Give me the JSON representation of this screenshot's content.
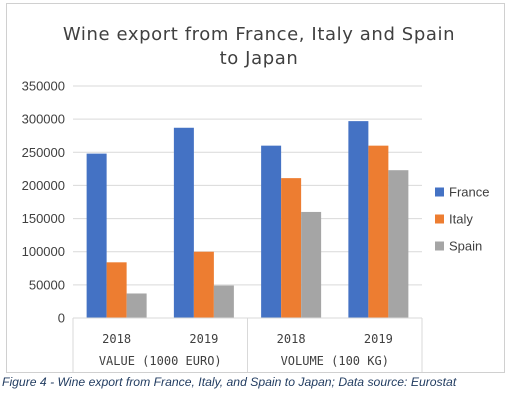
{
  "chart_data": {
    "type": "bar",
    "title_lines": [
      "Wine export from France, Italy and Spain",
      "to Japan"
    ],
    "groups": [
      {
        "label": "VALUE (1000 EURO)",
        "categories": [
          "2018",
          "2019"
        ]
      },
      {
        "label": "VOLUME (100 KG)",
        "categories": [
          "2018",
          "2019"
        ]
      }
    ],
    "categories": [
      "2018",
      "2019",
      "2018",
      "2019"
    ],
    "series": [
      {
        "name": "France",
        "color": "#4472C4",
        "values": [
          248000,
          287000,
          260000,
          297000
        ]
      },
      {
        "name": "Italy",
        "color": "#ED7D31",
        "values": [
          84000,
          100000,
          211000,
          260000
        ]
      },
      {
        "name": "Spain",
        "color": "#A5A5A5",
        "values": [
          37000,
          49000,
          160000,
          223000
        ]
      }
    ],
    "ylim": [
      0,
      350000
    ],
    "yticks": [
      "0",
      "50000",
      "100000",
      "150000",
      "200000",
      "250000",
      "300000",
      "350000"
    ],
    "grid": true,
    "legend_position": "right"
  },
  "caption": "Figure 4 - Wine export from France, Italy, and Spain to Japan; Data source: Eurostat"
}
